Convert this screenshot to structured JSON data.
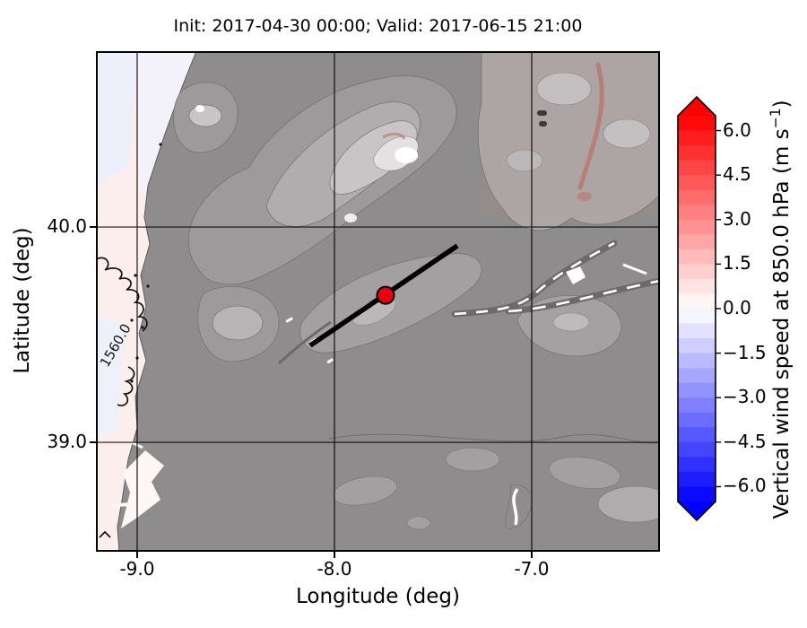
{
  "chart_data": {
    "type": "heatmap",
    "title": "Init: 2017-04-30 00:00; Valid: 2017-06-15 21:00",
    "xlabel": "Longitude (deg)",
    "ylabel": "Latitude (deg)",
    "xlim": [
      -9.209,
      -6.35
    ],
    "ylim": [
      38.492,
      40.817
    ],
    "xticks": [
      -9.0,
      -8.0,
      -7.0
    ],
    "xtick_labels": [
      "-9.0",
      "-8.0",
      "-7.0"
    ],
    "yticks": [
      40.0,
      39.0
    ],
    "ytick_labels": [
      "40.0",
      "39.0"
    ],
    "grid": true,
    "colorbar": {
      "label_prefix": "Vertical wind speed at 850.0 hPa (m s",
      "label_sup": "−1",
      "label_suffix": ")",
      "label_full": "Vertical wind speed at 850.0 hPa (m s⁻¹)",
      "colormap": "bwr",
      "min": -6.5,
      "max": 6.5,
      "step": 0.5,
      "extend": "both",
      "ticks": [
        {
          "value": 6.0,
          "label": "6.0"
        },
        {
          "value": 4.5,
          "label": "4.5"
        },
        {
          "value": 3.0,
          "label": "3.0"
        },
        {
          "value": 1.5,
          "label": "1.5"
        },
        {
          "value": 0.0,
          "label": "0.0"
        },
        {
          "value": -1.5,
          "label": "−1.5"
        },
        {
          "value": -3.0,
          "label": "−3.0"
        },
        {
          "value": -4.5,
          "label": "−4.5"
        },
        {
          "value": -6.0,
          "label": "−6.0"
        }
      ]
    },
    "overlays": {
      "contour_label": {
        "text": "1560.0",
        "lon": -9.09,
        "lat": 39.44,
        "rotation": -60
      },
      "cross_section": {
        "from": {
          "lon": -8.123,
          "lat": 39.45
        },
        "to": {
          "lon": -7.377,
          "lat": 39.913
        },
        "color": "#000000"
      },
      "marker": {
        "lon": -7.741,
        "lat": 39.683,
        "color": "#e8000d",
        "edge": "#000000"
      }
    }
  },
  "colors": {
    "ocean_pink": "#fbeeec",
    "ocean_lavender": "#edeffa",
    "land_base": "#8f8c8d",
    "terrain_1": "#9e9a9b",
    "terrain_2": "#b1adae",
    "terrain_3": "#c9c5c6",
    "terrain_4": "#e4e1e2",
    "terrain_peak": "#ffffff",
    "contour_gray": "#767475",
    "contour_black": "#141414",
    "updraft_red": "#c05a50"
  }
}
